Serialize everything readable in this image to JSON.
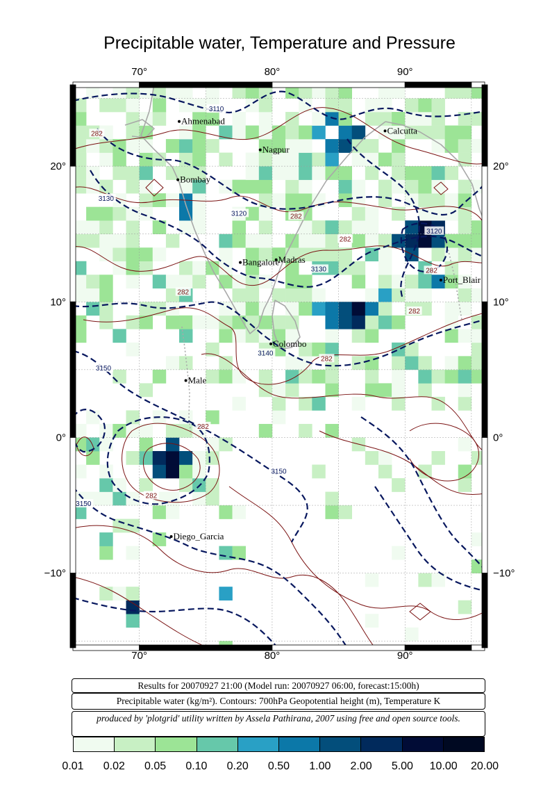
{
  "title": "Precipitable water, Temperature and Pressure",
  "axes": {
    "lon_min": 65,
    "lon_max": 96,
    "lat_min": -15.5,
    "lat_max": 26,
    "lon_ticks": [
      {
        "v": 70,
        "label": "70°"
      },
      {
        "v": 80,
        "label": "80°"
      },
      {
        "v": 90,
        "label": "90°"
      }
    ],
    "lat_ticks": [
      {
        "v": 20,
        "label": "20°"
      },
      {
        "v": 10,
        "label": "10°"
      },
      {
        "v": 0,
        "label": "0°"
      },
      {
        "v": -10,
        "label": "−10°"
      }
    ]
  },
  "cities": [
    {
      "name": "Ahmenabad",
      "lon": 73.0,
      "lat": 23.3
    },
    {
      "name": "Nagpur",
      "lon": 79.1,
      "lat": 21.2
    },
    {
      "name": "Calcutta",
      "lon": 88.5,
      "lat": 22.6
    },
    {
      "name": "Bombay",
      "lon": 72.9,
      "lat": 19.0
    },
    {
      "name": "Bangalore",
      "lon": 77.6,
      "lat": 12.9
    },
    {
      "name": "Madras",
      "lon": 80.3,
      "lat": 13.1
    },
    {
      "name": "Port_Blair",
      "lon": 92.7,
      "lat": 11.6
    },
    {
      "name": "Colombo",
      "lon": 79.9,
      "lat": 6.9
    },
    {
      "name": "Male",
      "lon": 73.5,
      "lat": 4.2
    },
    {
      "name": "Diego_Garcia",
      "lon": 72.4,
      "lat": -7.3
    }
  ],
  "contour_labels": [
    {
      "text": "3110",
      "lon": 75.8,
      "lat": 24.2,
      "kind": "height"
    },
    {
      "text": "282",
      "lon": 66.8,
      "lat": 22.4,
      "kind": "temp"
    },
    {
      "text": "3130",
      "lon": 67.5,
      "lat": 17.6,
      "kind": "height"
    },
    {
      "text": "3120",
      "lon": 77.5,
      "lat": 16.5,
      "kind": "height"
    },
    {
      "text": "282",
      "lon": 81.8,
      "lat": 16.3,
      "kind": "temp"
    },
    {
      "text": "282",
      "lon": 85.5,
      "lat": 14.6,
      "kind": "temp"
    },
    {
      "text": "3120",
      "lon": 92.2,
      "lat": 15.2,
      "kind": "height"
    },
    {
      "text": "282",
      "lon": 92.0,
      "lat": 12.3,
      "kind": "temp"
    },
    {
      "text": "3130",
      "lon": 83.5,
      "lat": 12.4,
      "kind": "height"
    },
    {
      "text": "282",
      "lon": 73.3,
      "lat": 10.7,
      "kind": "temp"
    },
    {
      "text": "282",
      "lon": 90.7,
      "lat": 9.3,
      "kind": "temp"
    },
    {
      "text": "3140",
      "lon": 79.5,
      "lat": 6.2,
      "kind": "height"
    },
    {
      "text": "282",
      "lon": 84.1,
      "lat": 5.8,
      "kind": "temp"
    },
    {
      "text": "3150",
      "lon": 67.3,
      "lat": 5.1,
      "kind": "height"
    },
    {
      "text": "282",
      "lon": 74.8,
      "lat": 0.8,
      "kind": "temp"
    },
    {
      "text": "3150",
      "lon": 80.5,
      "lat": -2.5,
      "kind": "height"
    },
    {
      "text": "282",
      "lon": 70.9,
      "lat": -4.3,
      "kind": "temp"
    },
    {
      "text": "3150",
      "lon": 65.8,
      "lat": -4.9,
      "kind": "height"
    }
  ],
  "info": {
    "line1": "Results for 20070927 21:00 (Model run: 20070927 06:00, forecast:15:00h)",
    "line2": "Precipitable water (kg/m²).  Contours: 700hPa Geopotential height (m), Temperature K",
    "line3": "produced by 'plotgrid' utility written by Assela Pathirana, 2007 using free and open source tools."
  },
  "legend": {
    "labels": [
      "0.01",
      "0.02",
      "0.05",
      "0.10",
      "0.20",
      "0.50",
      "1.00",
      "2.00",
      "5.00",
      "10.00",
      "20.00"
    ],
    "colors": [
      "#f0fbf0",
      "#c8f0c4",
      "#9ce496",
      "#66c8aa",
      "#29a0c5",
      "#0c78a8",
      "#034e7b",
      "#012a5c",
      "#010c36",
      "#000922"
    ]
  },
  "chart_data": {
    "type": "heatmap",
    "title": "Precipitable water, Temperature and Pressure",
    "cell_deg": 1,
    "levels": [
      "0.01",
      "0.02",
      "0.05",
      "0.10",
      "0.20",
      "0.50",
      "1.00",
      "2.00",
      "5.00",
      "10.00",
      "20.00"
    ],
    "cells": [
      {
        "lon": 86,
        "lat": 22,
        "level": 6
      },
      {
        "lon": 85,
        "lat": 22,
        "level": 5
      },
      {
        "lon": 84,
        "lat": 23,
        "level": 5
      },
      {
        "lon": 85,
        "lat": 21,
        "level": 6
      },
      {
        "lon": 84,
        "lat": 21,
        "level": 5
      },
      {
        "lon": 83,
        "lat": 22,
        "level": 4
      },
      {
        "lon": 84,
        "lat": 20,
        "level": 4
      },
      {
        "lon": 91,
        "lat": 15,
        "level": 8
      },
      {
        "lon": 90,
        "lat": 14,
        "level": 7
      },
      {
        "lon": 91,
        "lat": 14,
        "level": 8
      },
      {
        "lon": 92,
        "lat": 15,
        "level": 7
      },
      {
        "lon": 90,
        "lat": 15,
        "level": 6
      },
      {
        "lon": 89,
        "lat": 14,
        "level": 6
      },
      {
        "lon": 92,
        "lat": 14,
        "level": 6
      },
      {
        "lon": 90,
        "lat": 13,
        "level": 6
      },
      {
        "lon": 86,
        "lat": 9,
        "level": 8
      },
      {
        "lon": 86,
        "lat": 8,
        "level": 7
      },
      {
        "lon": 85,
        "lat": 9,
        "level": 6
      },
      {
        "lon": 85,
        "lat": 8,
        "level": 6
      },
      {
        "lon": 87,
        "lat": 9,
        "level": 5
      },
      {
        "lon": 84,
        "lat": 9,
        "level": 5
      },
      {
        "lon": 84,
        "lat": 8,
        "level": 5
      },
      {
        "lon": 72,
        "lat": -2,
        "level": 8
      },
      {
        "lon": 72,
        "lat": -3,
        "level": 8
      },
      {
        "lon": 71,
        "lat": -2,
        "level": 7
      },
      {
        "lon": 73,
        "lat": -2,
        "level": 6
      },
      {
        "lon": 72,
        "lat": -1,
        "level": 6
      },
      {
        "lon": 71,
        "lat": -3,
        "level": 6
      },
      {
        "lon": 69,
        "lat": -13,
        "level": 7
      },
      {
        "lon": 73,
        "lat": 17,
        "level": 5
      },
      {
        "lon": 73,
        "lat": 16,
        "level": 5
      },
      {
        "lon": 88,
        "lat": 10,
        "level": 4
      },
      {
        "lon": 83,
        "lat": 9,
        "level": 4
      },
      {
        "lon": 92,
        "lat": 11,
        "level": 5
      },
      {
        "lon": 76,
        "lat": -12,
        "level": 4
      }
    ]
  }
}
